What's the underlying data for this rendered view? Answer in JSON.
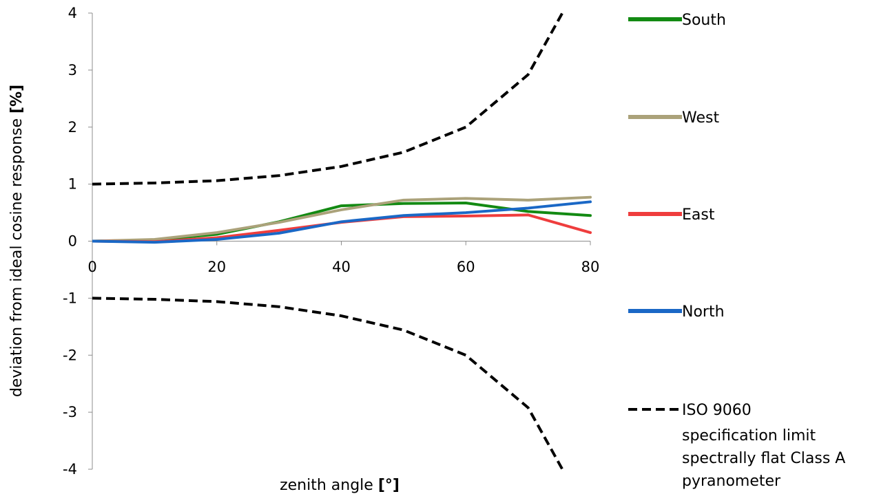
{
  "chart_data": {
    "type": "line",
    "title": "",
    "xlabel": "zenith angle",
    "xlabel_unit": "[°]",
    "ylabel": "deviation from ideal cosine response",
    "ylabel_unit": "[%]",
    "xlim": [
      0,
      80
    ],
    "ylim": [
      -4,
      4
    ],
    "x_ticks": [
      "0",
      "20",
      "40",
      "60",
      "80"
    ],
    "y_ticks": [
      "4",
      "3",
      "2",
      "1",
      "0",
      "-1",
      "-2",
      "-3",
      "-4"
    ],
    "grid": false,
    "legend_position": "right",
    "x": [
      0,
      10,
      20,
      30,
      40,
      50,
      60,
      70,
      80
    ],
    "series": [
      {
        "name": "South",
        "color": "#138a13",
        "style": "solid",
        "values": [
          0.0,
          0.02,
          0.12,
          0.34,
          0.62,
          0.66,
          0.67,
          0.52,
          0.45
        ]
      },
      {
        "name": "West",
        "color": "#aba27a",
        "style": "solid",
        "values": [
          0.0,
          0.03,
          0.15,
          0.33,
          0.55,
          0.72,
          0.75,
          0.72,
          0.77
        ]
      },
      {
        "name": "East",
        "color": "#ef3d3d",
        "style": "solid",
        "values": [
          0.0,
          -0.01,
          0.06,
          0.19,
          0.33,
          0.43,
          0.44,
          0.46,
          0.15
        ]
      },
      {
        "name": "North",
        "color": "#1a68c6",
        "style": "solid",
        "values": [
          0.0,
          -0.02,
          0.03,
          0.14,
          0.34,
          0.45,
          0.5,
          0.58,
          0.69
        ]
      }
    ],
    "limit_series": {
      "name": "ISO 9060 specification limit spectrally flat Class A pyranometer",
      "legend_lines": [
        "ISO 9060",
        "specification limit",
        "spectrally flat Class A",
        "pyranometer"
      ],
      "color": "#000000",
      "style": "dashed",
      "x": [
        0,
        10,
        20,
        30,
        40,
        50,
        60,
        70,
        75.5
      ],
      "upper": [
        1.0,
        1.02,
        1.06,
        1.15,
        1.31,
        1.56,
        2.0,
        2.92,
        4.0
      ],
      "lower": [
        -1.0,
        -1.02,
        -1.06,
        -1.15,
        -1.31,
        -1.56,
        -2.0,
        -2.92,
        -4.0
      ]
    }
  }
}
